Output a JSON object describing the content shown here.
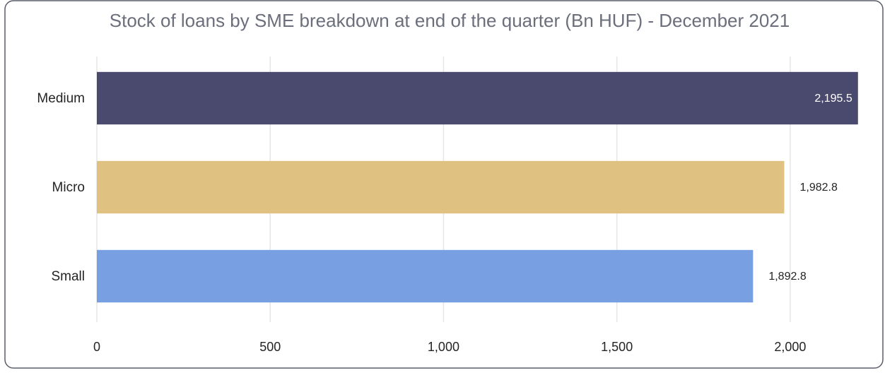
{
  "chart_data": {
    "type": "bar",
    "orientation": "horizontal",
    "title": "Stock of loans by SME breakdown at end of the quarter (Bn HUF) - December 2021",
    "categories": [
      "Medium",
      "Micro",
      "Small"
    ],
    "values": [
      2195.5,
      1982.8,
      1892.8
    ],
    "value_labels": [
      "2,195.5",
      "1,982.8",
      "1,892.8"
    ],
    "colors": [
      "#4a4a6e",
      "#dfc181",
      "#779fe2"
    ],
    "xlim": [
      0,
      2200
    ],
    "xticks": [
      0,
      500,
      {
        "value": 1000,
        "label": "1,000"
      },
      {
        "value": 1500,
        "label": "1,500"
      },
      {
        "value": 2000,
        "label": "2,000"
      }
    ],
    "grid": true
  }
}
